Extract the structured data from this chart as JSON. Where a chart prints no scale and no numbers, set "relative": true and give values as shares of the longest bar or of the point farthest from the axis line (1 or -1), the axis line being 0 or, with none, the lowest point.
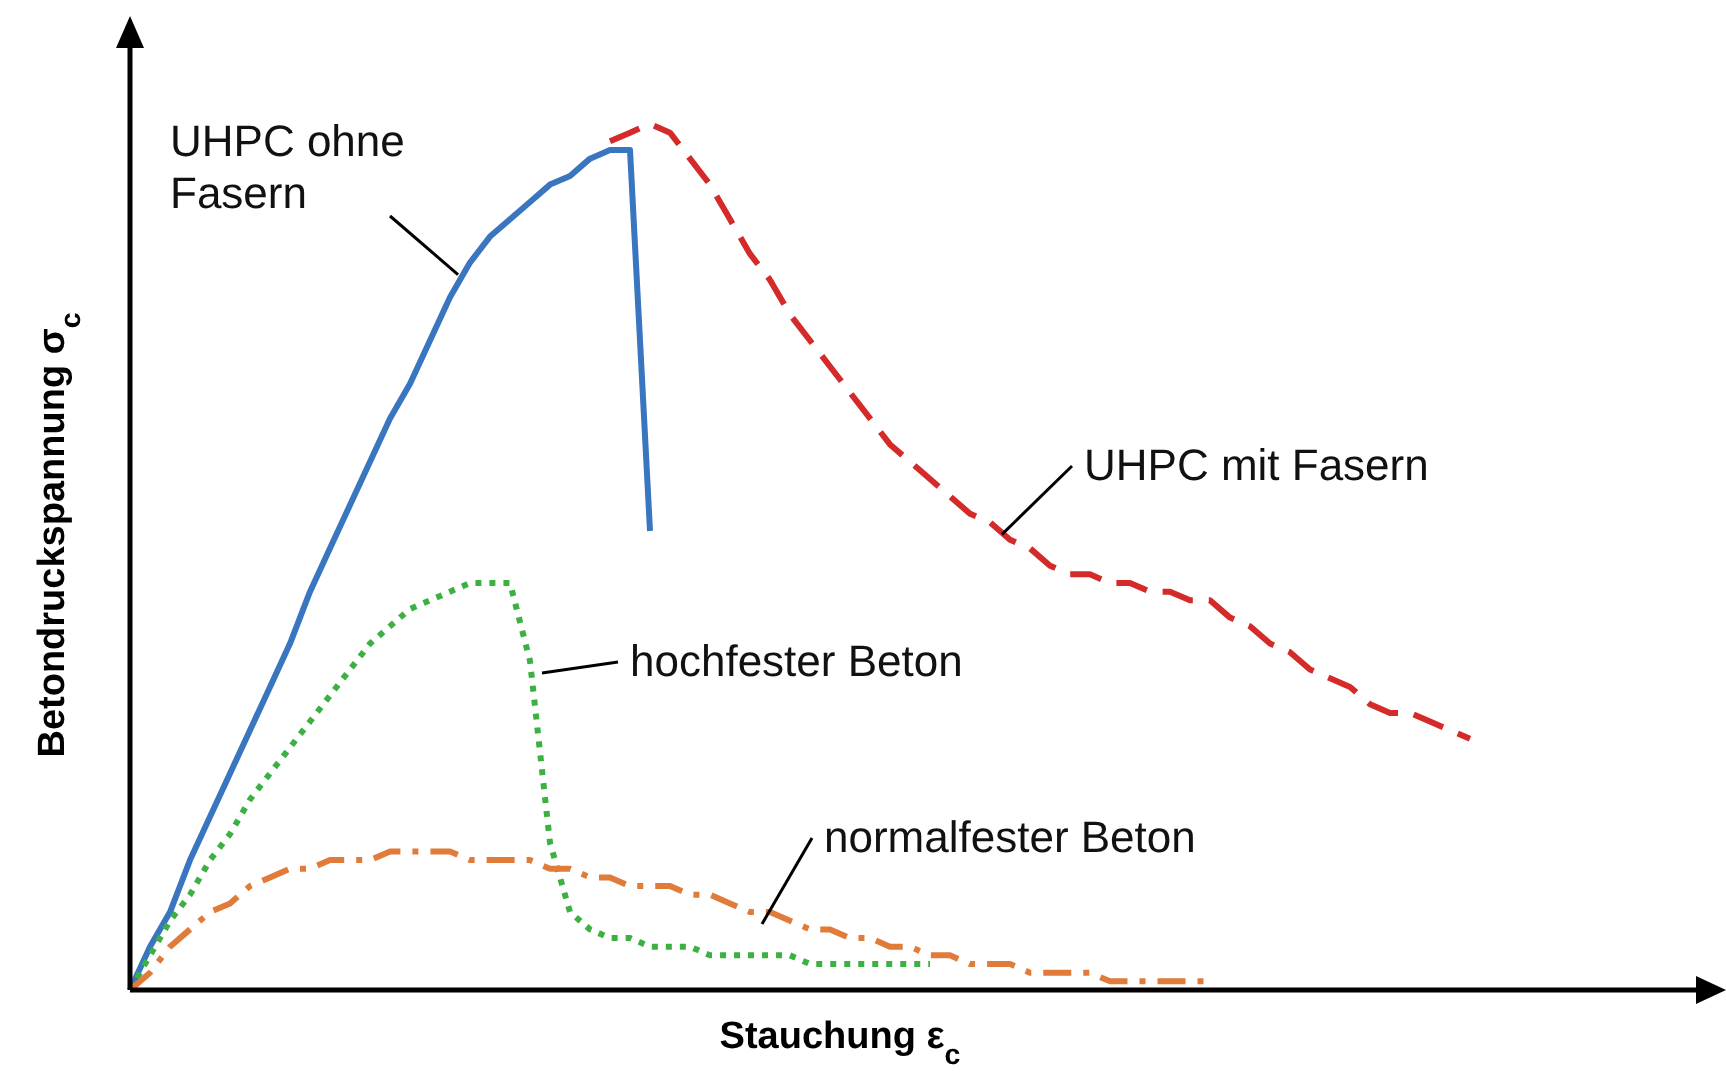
{
  "chart_data": {
    "type": "line",
    "relative": true,
    "xlabel": "Stauchung ε$_{c}$",
    "ylabel": "Betondruckspannung σ$_{c}$",
    "categories": [
      null,
      null,
      null,
      null,
      null,
      null,
      null,
      null,
      null,
      null,
      null,
      null,
      null,
      null,
      null,
      null,
      null,
      null,
      null,
      null,
      null,
      null,
      null,
      null,
      null,
      null,
      null,
      null,
      null,
      null,
      null,
      null,
      null,
      null,
      null,
      null,
      null,
      null,
      null,
      null,
      null,
      null,
      null,
      null,
      null,
      null,
      null,
      null,
      null,
      null,
      null,
      null,
      null,
      null,
      null,
      null,
      null,
      null,
      null,
      null,
      null,
      null,
      null,
      null,
      null,
      null,
      null,
      null,
      null,
      null,
      null,
      null,
      null,
      null,
      null,
      null,
      null,
      null,
      null,
      null
    ],
    "series": [
      {
        "name": "UHPC mit Fasern",
        "color": "#d42a2a",
        "line_style": "dashed",
        "values": [
          null,
          null,
          null,
          null,
          null,
          null,
          null,
          null,
          null,
          null,
          null,
          null,
          null,
          null,
          null,
          null,
          null,
          null,
          null,
          null,
          null,
          null,
          null,
          null,
          0.98,
          0.99,
          1,
          0.99,
          0.96,
          0.93,
          0.89,
          0.85,
          0.82,
          0.78,
          0.75,
          0.72,
          0.69,
          0.66,
          0.63,
          0.61,
          0.59,
          0.57,
          0.55,
          0.54,
          0.52,
          0.51,
          0.49,
          0.48,
          0.48,
          0.47,
          0.47,
          0.46,
          0.46,
          0.45,
          0.45,
          0.43,
          0.42,
          0.4,
          0.39,
          0.37,
          0.36,
          0.35,
          0.33,
          0.32,
          0.32,
          0.31,
          0.3,
          0.29,
          null,
          null,
          null,
          null,
          null,
          null,
          null,
          null,
          null,
          null,
          null,
          null
        ]
      },
      {
        "name": "UHPC ohne Fasern",
        "color": "#3a76c0",
        "line_style": "solid",
        "values": [
          0,
          0.05,
          0.09,
          0.15,
          0.2,
          0.25,
          0.3,
          0.35,
          0.4,
          0.46,
          0.51,
          0.56,
          0.61,
          0.66,
          0.7,
          0.75,
          0.8,
          0.84,
          0.87,
          0.89,
          0.91,
          0.93,
          0.94,
          0.96,
          0.97,
          0.97,
          0.53,
          null,
          null,
          null,
          null,
          null,
          null,
          null,
          null,
          null,
          null,
          null,
          null,
          null,
          null,
          null,
          null,
          null,
          null,
          null,
          null,
          null,
          null,
          null,
          null,
          null,
          null,
          null,
          null,
          null,
          null,
          null,
          null,
          null,
          null,
          null,
          null,
          null,
          null,
          null,
          null,
          null,
          null,
          null,
          null,
          null,
          null,
          null,
          null,
          null,
          null,
          null,
          null,
          null
        ]
      },
      {
        "name": "hochfester Beton",
        "color": "#3cb043",
        "line_style": "dotted",
        "values": [
          0,
          0.04,
          0.08,
          0.11,
          0.15,
          0.18,
          0.22,
          0.25,
          0.28,
          0.31,
          0.34,
          0.37,
          0.4,
          0.42,
          0.44,
          0.45,
          0.46,
          0.47,
          0.47,
          0.47,
          0.38,
          0.17,
          0.09,
          0.07,
          0.06,
          0.06,
          0.05,
          0.05,
          0.05,
          0.04,
          0.04,
          0.04,
          0.04,
          0.04,
          0.03,
          0.03,
          0.03,
          0.03,
          0.03,
          0.03,
          0.03,
          null,
          null,
          null,
          null,
          null,
          null,
          null,
          null,
          null,
          null,
          null,
          null,
          null,
          null,
          null,
          null,
          null,
          null,
          null,
          null,
          null,
          null,
          null,
          null,
          null,
          null,
          null,
          null,
          null,
          null,
          null,
          null,
          null,
          null,
          null,
          null,
          null,
          null,
          null
        ]
      },
      {
        "name": "normalfester Beton",
        "color": "#e07b39",
        "line_style": "dashdot",
        "values": [
          0,
          0.02,
          0.05,
          0.07,
          0.09,
          0.1,
          0.12,
          0.13,
          0.14,
          0.14,
          0.15,
          0.15,
          0.15,
          0.16,
          0.16,
          0.16,
          0.16,
          0.15,
          0.15,
          0.15,
          0.15,
          0.14,
          0.14,
          0.13,
          0.13,
          0.12,
          0.12,
          0.12,
          0.11,
          0.11,
          0.1,
          0.09,
          0.09,
          0.08,
          0.07,
          0.07,
          0.06,
          0.06,
          0.05,
          0.05,
          0.04,
          0.04,
          0.03,
          0.03,
          0.03,
          0.02,
          0.02,
          0.02,
          0.02,
          0.01,
          0.01,
          0.01,
          0.01,
          0.01,
          0.01,
          null,
          null,
          null,
          null,
          null,
          null,
          null,
          null,
          null,
          null,
          null,
          null,
          null,
          null,
          null,
          null,
          null,
          null,
          null,
          null,
          null,
          null,
          null,
          null,
          null
        ]
      }
    ]
  }
}
